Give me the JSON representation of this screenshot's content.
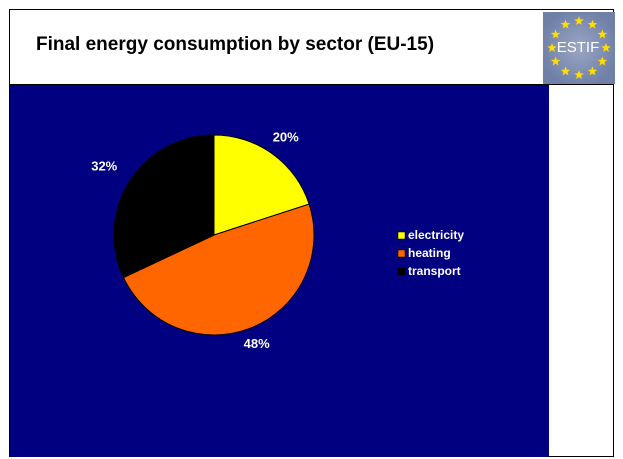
{
  "slide": {
    "title": "Final energy consumption by sector (EU-15)"
  },
  "logo": {
    "text": "ESTIF",
    "colors": {
      "background": "#6f7fa6",
      "stars": "#ffdd00",
      "text": "#ffffff"
    }
  },
  "colors": {
    "plot_background": "#000080",
    "slice_outline": "#000000"
  },
  "chart_data": {
    "type": "pie",
    "title": "",
    "categories": [
      "electricity",
      "heating",
      "transport"
    ],
    "values": [
      20,
      48,
      32
    ],
    "labels": [
      "20%",
      "48%",
      "32%"
    ],
    "colors": [
      "#ffff00",
      "#ff6600",
      "#000000"
    ],
    "start_angle_deg": 0,
    "direction": "clockwise",
    "legend_position": "right"
  }
}
